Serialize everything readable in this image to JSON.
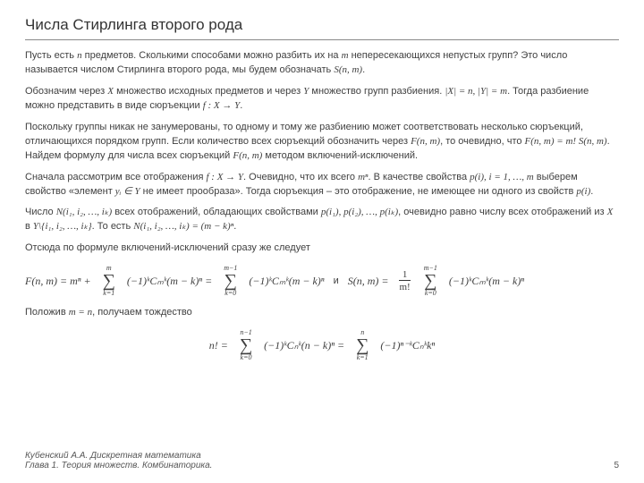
{
  "title": "Числа Стирлинга второго рода",
  "p1a": "Пусть есть ",
  "p1b": " предметов. Сколькими способами можно разбить их на ",
  "p1c": " непересекающихся непустых групп? Это число называется числом Стирлинга второго рода, мы будем обозначать ",
  "p1_n": "n",
  "p1_m": "m",
  "p1_S": "S(n, m)",
  "p1d": ".",
  "p2a": "Обозначим через ",
  "p2_X": "X",
  "p2b": " множество исходных предметов и через ",
  "p2_Y": "Y",
  "p2c": " множество групп разбиения. ",
  "p2_card": "|X| = n, |Y| = m",
  "p2d": ". Тогда разбиение можно представить в виде сюръекции ",
  "p2_f": "f : X → Y",
  "p2e": ".",
  "p3a": "Поскольку группы никак не занумерованы, то одному и тому же разбиению может соответствовать несколько сюръекций, отличающихся порядком групп. Если количество всех сюръекций обозначить через ",
  "p3_F": "F(n, m)",
  "p3b": ", то очевидно, что ",
  "p3_eq": "F(n, m) = m! S(n, m)",
  "p3c": ". Найдем формулу для числа всех сюръекций ",
  "p3_F2": "F(n, m)",
  "p3d": " методом включений-исключений.",
  "p4a": "Сначала рассмотрим все отображения ",
  "p4_f": "f : X → Y",
  "p4b": ". Очевидно, что их всего ",
  "p4_mn": "mⁿ",
  "p4c": ". В качестве свойства ",
  "p4_pi": "p(i), i = 1, …, m",
  "p4d": " выберем свойство «элемент ",
  "p4_yi": "yᵢ ∈ Y",
  "p4e": " не имеет прообраза». Тогда сюръекция – это отображение, не имеющее ни одного из свойств ",
  "p4_pi2": "p(i)",
  "p4f": ".",
  "p5a": "Число ",
  "p5_N": "N(i₁, i₂, …, iₖ)",
  "p5b": " всех отображений, обладающих свойствами ",
  "p5_props": "p(i₁), p(i₂), …, p(iₖ)",
  "p5c": ", очевидно равно числу всех отображений из ",
  "p5_X": "X",
  "p5d": " в ",
  "p5_Yset": "Y\\{i₁, i₂, …, iₖ}",
  "p5e": ". То есть ",
  "p5_Neq": "N(i₁, i₂, …, iₖ) = (m − k)ⁿ",
  "p5f": ".",
  "p6": "Отсюда по формуле включений-исключений сразу же следует",
  "f1_lhs": "F(n, m) = mⁿ + ",
  "f1_top": "m",
  "f1_bot": "k=1",
  "f1_body": "(−1)ᵏCₘᵏ(m − k)ⁿ = ",
  "f1_top2": "m−1",
  "f1_bot2": "k=0",
  "f1_body2": "(−1)ᵏCₘᵏ(m − k)ⁿ",
  "conn_and": "и",
  "f2_lhs": "S(n, m) = ",
  "f2_frac_num": "1",
  "f2_frac_den": "m!",
  "f2_top": "m−1",
  "f2_bot": "k=0",
  "f2_body": "(−1)ᵏCₘᵏ(m − k)ⁿ",
  "p7a": "Положив ",
  "p7_mn": "m = n",
  "p7b": ", получаем тождество",
  "f3_lhs": "n! = ",
  "f3_top": "n−1",
  "f3_bot": "k=0",
  "f3_body": "(−1)ᵏCₙᵏ(n − k)ⁿ = ",
  "f3_top2": "n",
  "f3_bot2": "k=1",
  "f3_body2": "(−1)ⁿ⁻ᵏCₙᵏkⁿ",
  "footer_author": "Кубенский А.А. Дискретная математика",
  "footer_chapter": "Глава 1. Теория множеств. Комбинаторика.",
  "page_num": "5"
}
